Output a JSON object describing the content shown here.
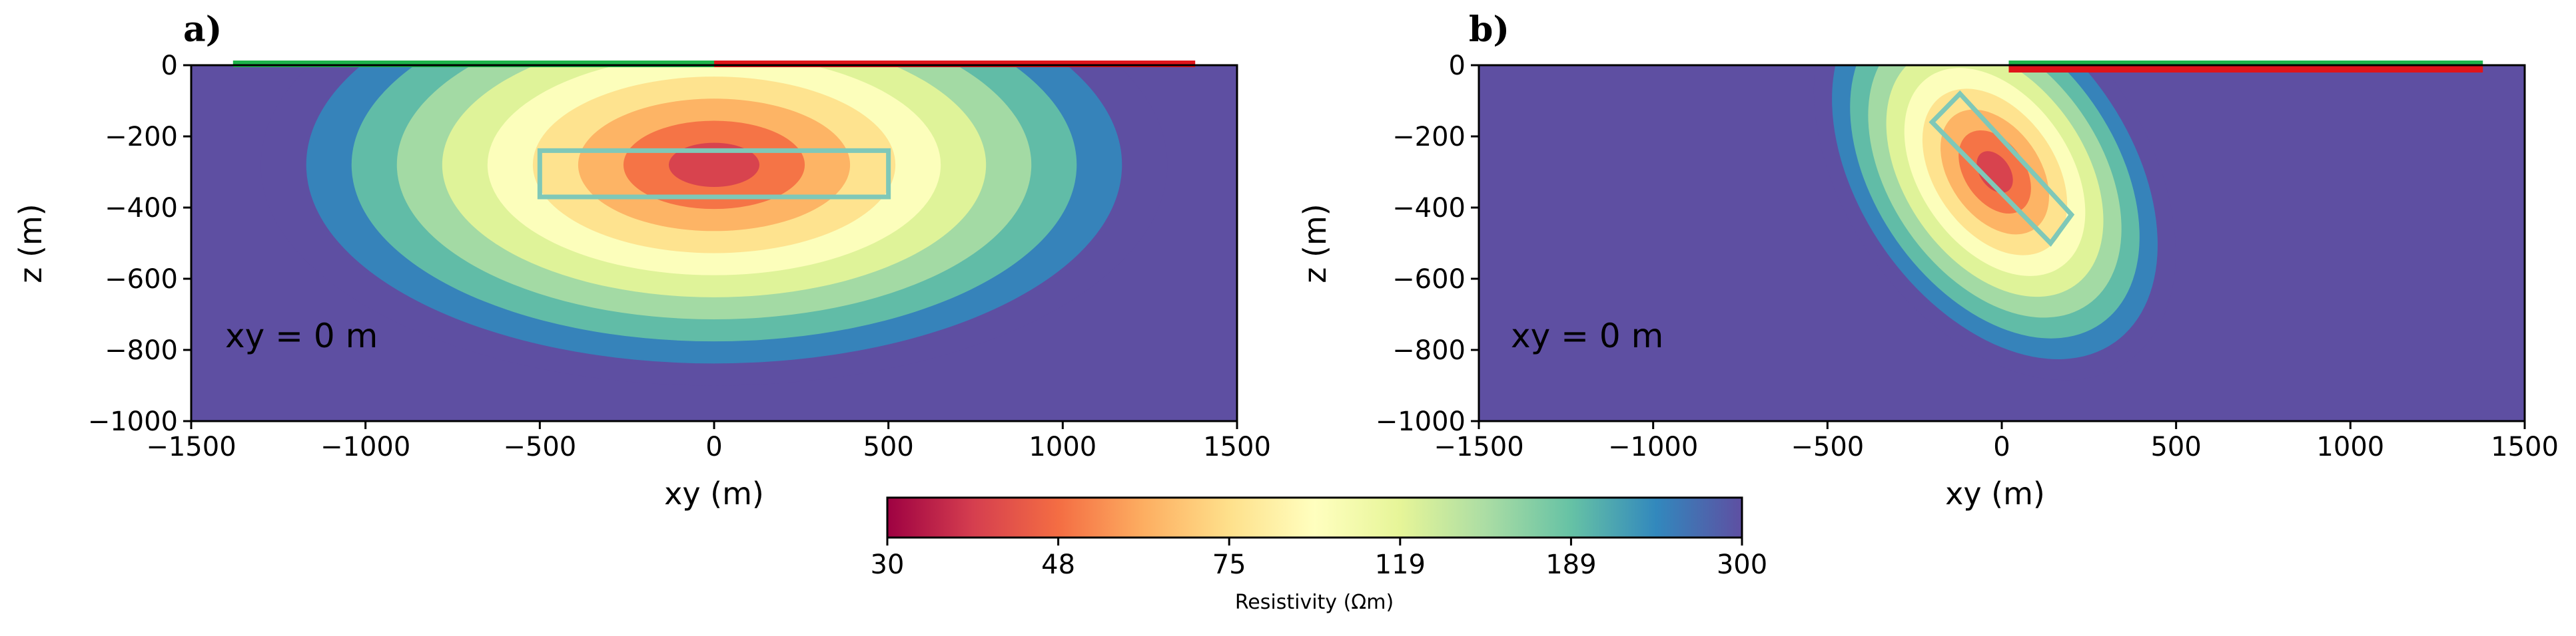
{
  "colors": {
    "background": "#5e4fa2",
    "colormap": [
      "#9e0142",
      "#d53e4f",
      "#f46d43",
      "#fdae61",
      "#fee08b",
      "#ffffbf",
      "#e6f598",
      "#abdda4",
      "#66c2a5",
      "#3288bd",
      "#5e4fa2"
    ],
    "target_box": "#7fc8b8",
    "line_green": "#1db34a",
    "line_red": "#e0141a"
  },
  "chart_data": [
    {
      "type": "heatmap",
      "panel_label": "a)",
      "annotation": "xy = 0 m",
      "xlabel": "xy (m)",
      "ylabel": "z (m)",
      "xlim": [
        -1500,
        1500
      ],
      "ylim": [
        -1000,
        0
      ],
      "xticks": [
        -1500,
        -1000,
        -500,
        0,
        500,
        1000,
        1500
      ],
      "yticks": [
        0,
        -200,
        -400,
        -600,
        -800,
        -1000
      ],
      "xtick_labels": [
        "−1500",
        "−1000",
        "−500",
        "0",
        "500",
        "1000",
        "1500"
      ],
      "ytick_labels": [
        "0",
        "−200",
        "−400",
        "−600",
        "−800",
        "−1000"
      ],
      "anomaly": {
        "center_xy": 0,
        "center_z": -280,
        "radius_xy": 1300,
        "radius_z": 620,
        "core_resistivity": 30
      },
      "target_box": {
        "corners": [
          [
            -500,
            -240
          ],
          [
            500,
            -240
          ],
          [
            500,
            -370
          ],
          [
            -500,
            -370
          ]
        ]
      },
      "surface_lines": [
        {
          "color": "green",
          "x": [
            -1380,
            0
          ]
        },
        {
          "color": "red",
          "x": [
            0,
            1380
          ]
        }
      ]
    },
    {
      "type": "heatmap",
      "panel_label": "b)",
      "annotation": "xy = 0 m",
      "xlabel": "xy (m)",
      "ylabel": "z (m)",
      "xlim": [
        -1500,
        1500
      ],
      "ylim": [
        -1000,
        0
      ],
      "xticks": [
        -1500,
        -1000,
        -500,
        0,
        500,
        1000,
        1500
      ],
      "yticks": [
        0,
        -200,
        -400,
        -600,
        -800,
        -1000
      ],
      "xtick_labels": [
        "−1500",
        "−1000",
        "−500",
        "0",
        "500",
        "1000",
        "1500"
      ],
      "ytick_labels": [
        "0",
        "−200",
        "−400",
        "−600",
        "−800",
        "−1000"
      ],
      "anomaly": {
        "center_xy": -20,
        "center_z": -300,
        "radius_xy": 430,
        "radius_z": 650,
        "tilt_deg": -35,
        "core_resistivity": 30
      },
      "target_box": {
        "corners": [
          [
            -200,
            -160
          ],
          [
            -120,
            -80
          ],
          [
            200,
            -420
          ],
          [
            140,
            -500
          ]
        ]
      },
      "surface_lines": [
        {
          "color": "green",
          "x": [
            20,
            1380
          ]
        },
        {
          "color": "red",
          "x": [
            20,
            1380
          ]
        }
      ]
    }
  ],
  "colorbar": {
    "title": "Resistivity (Ωm)",
    "ticks": [
      "30",
      "48",
      "75",
      "119",
      "189",
      "300"
    ],
    "range": [
      30,
      300
    ],
    "scale": "log"
  }
}
